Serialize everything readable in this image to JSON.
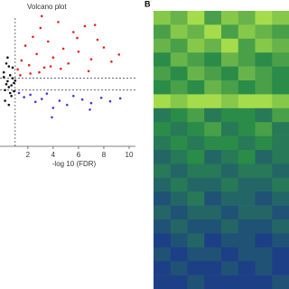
{
  "chart_data": [
    {
      "type": "scatter",
      "title": "Volcano plot",
      "x_label": "-log 10 (FDR)",
      "xlim": [
        -0.2,
        10.5
      ],
      "ylim": [
        -10.5,
        13
      ],
      "xticks": [
        2,
        4,
        6,
        8,
        10
      ],
      "vlines": [
        1
      ],
      "hlines": [
        1,
        -1
      ],
      "series": [
        {
          "color": "#e8201c",
          "x": [
            1.2,
            1.5,
            1.8,
            2.1,
            2.4,
            2.7,
            3.0,
            3.3,
            3.6,
            4.0,
            4.4,
            4.8,
            5.2,
            5.6,
            6.0,
            6.5,
            7.0,
            7.5,
            8.0,
            8.6,
            9.2,
            3.1,
            4.6,
            5.9,
            7.3,
            2.2,
            3.8,
            6.8,
            1.4,
            2.9
          ],
          "y": [
            2.5,
            4.0,
            6.5,
            3.2,
            8.0,
            5.1,
            9.5,
            2.8,
            7.2,
            4.5,
            10.5,
            6.0,
            3.5,
            8.8,
            5.5,
            9.8,
            4.2,
            7.5,
            6.2,
            3.8,
            5.0,
            11.5,
            2.6,
            7.8,
            10.0,
            1.8,
            3.0,
            2.2,
            1.5,
            2.0
          ]
        },
        {
          "color": "#3a3ad8",
          "x": [
            1.3,
            1.7,
            2.2,
            2.6,
            3.1,
            3.5,
            4.0,
            4.5,
            5.1,
            5.6,
            6.3,
            7.0,
            7.8,
            8.5,
            9.3,
            3.9,
            6.9
          ],
          "y": [
            -1.5,
            -2.2,
            -1.8,
            -3.0,
            -2.5,
            -1.6,
            -4.0,
            -2.8,
            -3.5,
            -2.0,
            -2.6,
            -3.2,
            -2.3,
            -2.9,
            -2.4,
            -5.6,
            -4.3
          ]
        },
        {
          "color": "#111111",
          "x": [
            0.1,
            0.2,
            0.3,
            0.4,
            0.5,
            0.6,
            0.7,
            0.8,
            0.9,
            0.2,
            0.4,
            0.6,
            0.8,
            0.3,
            0.5,
            0.7,
            0.9,
            1.0,
            0.1,
            0.5
          ],
          "y": [
            2.0,
            -1.0,
            3.5,
            0.5,
            -0.5,
            1.5,
            -2.0,
            2.8,
            0.2,
            -2.8,
            4.5,
            -1.5,
            1.0,
            0.0,
            3.0,
            -0.2,
            -1.2,
            0.6,
            1.2,
            -3.5
          ]
        }
      ]
    },
    {
      "type": "heatmap",
      "panel_label": "B",
      "colormap": [
        "#1a2c94",
        "#2a8c48",
        "#c4f04c"
      ],
      "values": [
        [
          0.8,
          0.7,
          0.9,
          0.6,
          0.8,
          0.7,
          0.9,
          0.8
        ],
        [
          0.6,
          0.8,
          0.7,
          0.9,
          0.6,
          0.8,
          0.7,
          0.6
        ],
        [
          0.7,
          0.6,
          0.8,
          0.7,
          0.9,
          0.6,
          0.8,
          0.7
        ],
        [
          0.5,
          0.7,
          0.6,
          0.5,
          0.7,
          0.6,
          0.5,
          0.6
        ],
        [
          0.6,
          0.5,
          0.7,
          0.6,
          0.5,
          0.7,
          0.6,
          0.5
        ],
        [
          0.5,
          0.6,
          0.5,
          0.7,
          0.6,
          0.5,
          0.6,
          0.5
        ],
        [
          0.9,
          0.8,
          0.9,
          0.9,
          0.8,
          0.9,
          0.9,
          0.8
        ],
        [
          0.4,
          0.5,
          0.6,
          0.4,
          0.5,
          0.5,
          0.4,
          0.6
        ],
        [
          0.5,
          0.4,
          0.5,
          0.6,
          0.4,
          0.5,
          0.6,
          0.4
        ],
        [
          0.4,
          0.5,
          0.4,
          0.5,
          0.5,
          0.4,
          0.5,
          0.4
        ],
        [
          0.3,
          0.4,
          0.5,
          0.3,
          0.4,
          0.5,
          0.3,
          0.4
        ],
        [
          0.4,
          0.3,
          0.4,
          0.4,
          0.3,
          0.4,
          0.4,
          0.3
        ],
        [
          0.3,
          0.4,
          0.3,
          0.3,
          0.4,
          0.3,
          0.3,
          0.4
        ],
        [
          0.2,
          0.3,
          0.4,
          0.2,
          0.3,
          0.3,
          0.2,
          0.3
        ],
        [
          0.3,
          0.2,
          0.3,
          0.3,
          0.2,
          0.3,
          0.3,
          0.2
        ],
        [
          0.2,
          0.3,
          0.2,
          0.2,
          0.3,
          0.2,
          0.2,
          0.3
        ],
        [
          0.1,
          0.2,
          0.3,
          0.1,
          0.2,
          0.2,
          0.1,
          0.2
        ],
        [
          0.2,
          0.1,
          0.2,
          0.2,
          0.1,
          0.2,
          0.2,
          0.1
        ],
        [
          0.1,
          0.2,
          0.1,
          0.1,
          0.2,
          0.1,
          0.2,
          0.1
        ],
        [
          0.1,
          0.1,
          0.2,
          0.1,
          0.1,
          0.1,
          0.1,
          0.2
        ]
      ]
    }
  ]
}
